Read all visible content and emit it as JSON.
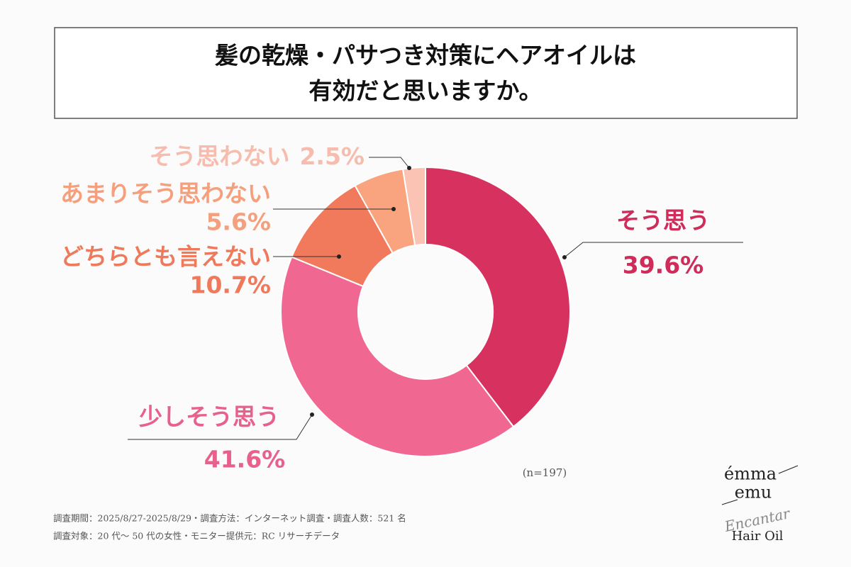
{
  "chart_data": {
    "type": "donut",
    "title": [
      "髪の乾燥・パサつき対策にヘアオイルは",
      "有効だと思いますか。"
    ],
    "categories": [
      "そう思う",
      "少しそう思う",
      "どちらとも言えない",
      "あまりそう思わない",
      "そう思わない"
    ],
    "values": [
      39.6,
      41.6,
      10.7,
      5.6,
      2.5
    ],
    "value_labels": [
      "39.6%",
      "41.6%",
      "10.7%",
      "5.6%",
      "2.5%"
    ],
    "colors": [
      "#d6315f",
      "#f06891",
      "#f27a5c",
      "#f9a47f",
      "#fbc3b4"
    ],
    "note": "(n=197)"
  },
  "footnotes": [
    "調査期間：2025/8/27-2025/8/29・調査方法：インターネット調査・調査人数：521 名",
    "調査対象：20 代〜 50 代の女性・モニター提供元：RC リサーチデータ"
  ],
  "brand": {
    "line1": "émma",
    "line2": "emu",
    "script": "Encantar",
    "product": "Hair Oil"
  }
}
